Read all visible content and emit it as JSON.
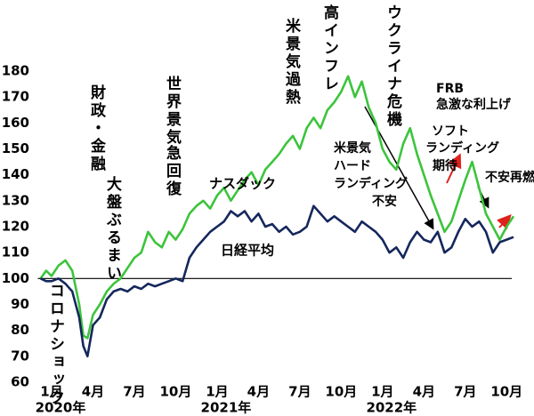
{
  "chart_data": {
    "type": "line",
    "x": [
      -0.8,
      -0.4,
      0,
      0.5,
      1,
      1.5,
      2,
      2.3,
      2.6,
      3,
      3.5,
      4,
      4.5,
      5,
      5.5,
      6,
      6.5,
      7,
      7.5,
      8,
      8.5,
      9,
      9.5,
      10,
      10.5,
      11,
      11.5,
      12,
      12.5,
      13,
      13.5,
      14,
      14.5,
      15,
      15.5,
      16,
      16.5,
      17,
      17.5,
      18,
      18.5,
      19,
      19.5,
      20,
      20.5,
      21,
      21.5,
      22,
      22.5,
      23,
      23.5,
      24,
      24.5,
      25,
      25.5,
      26,
      26.5,
      27,
      27.5,
      28,
      28.5,
      29,
      29.5,
      30,
      30.5,
      31,
      31.5,
      32,
      32.5,
      33,
      33.5
    ],
    "series": [
      {
        "name": "ナスダック",
        "color": "#3cc43c",
        "values": [
          100,
          103,
          101,
          105,
          107,
          103,
          90,
          78,
          77,
          86,
          90,
          95,
          98,
          100,
          104,
          108,
          110,
          118,
          114,
          112,
          118,
          115,
          119,
          125,
          128,
          130,
          127,
          132,
          135,
          130,
          134,
          138,
          141,
          136,
          142,
          145,
          148,
          152,
          155,
          150,
          158,
          162,
          158,
          165,
          168,
          172,
          178,
          170,
          176,
          166,
          160,
          150,
          145,
          142,
          152,
          158,
          148,
          140,
          132,
          125,
          118,
          122,
          130,
          138,
          145,
          135,
          125,
          120,
          115,
          120,
          124
        ]
      },
      {
        "name": "日経平均",
        "color": "#15275c",
        "values": [
          100,
          99,
          99,
          100,
          98,
          95,
          85,
          74,
          70,
          82,
          85,
          92,
          95,
          96,
          95,
          97,
          96,
          98,
          97,
          98,
          99,
          100,
          99,
          108,
          112,
          115,
          118,
          120,
          122,
          126,
          124,
          126,
          122,
          125,
          120,
          121,
          118,
          120,
          117,
          118,
          120,
          128,
          125,
          122,
          124,
          122,
          120,
          118,
          122,
          120,
          118,
          115,
          110,
          112,
          108,
          114,
          118,
          115,
          114,
          118,
          110,
          112,
          118,
          123,
          120,
          122,
          118,
          110,
          114,
          115,
          116
        ]
      }
    ],
    "xlim": [
      -1,
      34.5
    ],
    "xticks": [
      {
        "value": 0,
        "label": "1月"
      },
      {
        "value": 3,
        "label": "4月"
      },
      {
        "value": 6,
        "label": "7月"
      },
      {
        "value": 9,
        "label": "10月"
      },
      {
        "value": 12,
        "label": "1月"
      },
      {
        "value": 15,
        "label": "4月"
      },
      {
        "value": 18,
        "label": "7月"
      },
      {
        "value": 21,
        "label": "10月"
      },
      {
        "value": 24,
        "label": "1月"
      },
      {
        "value": 27,
        "label": "4月"
      },
      {
        "value": 30,
        "label": "7月"
      },
      {
        "value": 33,
        "label": "10月"
      }
    ],
    "x_year_labels": [
      {
        "value": 0,
        "label": "2020年"
      },
      {
        "value": 12,
        "label": "2021年"
      },
      {
        "value": 24,
        "label": "2022年"
      }
    ],
    "ylim": [
      60,
      180
    ],
    "yticks": [
      60,
      70,
      80,
      90,
      100,
      110,
      120,
      130,
      140,
      150,
      160,
      170,
      180
    ],
    "reference_line": 100,
    "grid": false,
    "annotation_color": "#e0201c",
    "annotations": [
      "コロナショック",
      "財政・金融",
      "大盤ぶるまい",
      "世界景気",
      "急回復",
      "米景気過熱",
      "高インフレ",
      "ウクライナ危機",
      "FRB",
      "急激な利上げ",
      "米景気",
      "ハード",
      "ランディング",
      "不安",
      "ソフト",
      "ランディング",
      "期待",
      "不安再燃"
    ]
  }
}
